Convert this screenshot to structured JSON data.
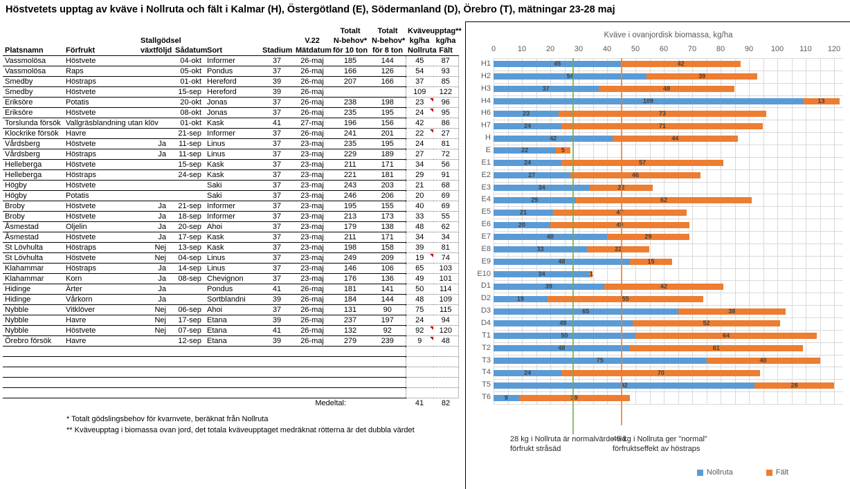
{
  "title": "Höstvetets upptag av kväve i Nollruta och fält i Kalmar (H), Östergötland (E), Södermanland (D), Örebro (T), mätningar 23-28 maj",
  "table": {
    "columns": [
      {
        "key": "platsnamn",
        "h1": "",
        "h2": "",
        "h3": "Platsnamn"
      },
      {
        "key": "forfrukt",
        "h1": "",
        "h2": "",
        "h3": "Förfrukt"
      },
      {
        "key": "stallgodsel",
        "h1": "",
        "h2": "Stallgödsel",
        "h3": "växtföljd"
      },
      {
        "key": "sadatum",
        "h1": "",
        "h2": "",
        "h3": "Sådatum"
      },
      {
        "key": "sort",
        "h1": "",
        "h2": "",
        "h3": "Sort"
      },
      {
        "key": "stadium",
        "h1": "",
        "h2": "",
        "h3": "Stadium"
      },
      {
        "key": "matdatum",
        "h1": "",
        "h2": "V.22",
        "h3": "Mätdatum"
      },
      {
        "key": "nbehov10",
        "h1": "Totalt",
        "h2": "N-behov*",
        "h3": "för 10 ton"
      },
      {
        "key": "nbehov8",
        "h1": "Totalt",
        "h2": "N-behov*",
        "h3": "för 8 ton"
      },
      {
        "key": "nollruta",
        "h1": "Kväveupptag**",
        "h2": "kg/ha",
        "h3": "Nollruta"
      },
      {
        "key": "falt",
        "h1": "",
        "h2": "kg/ha",
        "h3": "Fält"
      }
    ],
    "rows": [
      {
        "platsnamn": "Vassmolösa",
        "forfrukt": "Höstvete",
        "stallgodsel": "",
        "sadatum": "04-okt",
        "sort": "Informer",
        "stadium": "37",
        "matdatum": "26-maj",
        "nbehov10": "185",
        "nbehov8": "144",
        "nollruta": "45",
        "falt": "87"
      },
      {
        "platsnamn": "Vassmolösa",
        "forfrukt": "Raps",
        "stallgodsel": "",
        "sadatum": "05-okt",
        "sort": "Pondus",
        "stadium": "37",
        "matdatum": "26-maj",
        "nbehov10": "166",
        "nbehov8": "126",
        "nollruta": "54",
        "falt": "93"
      },
      {
        "platsnamn": "Smedby",
        "forfrukt": "Höstraps",
        "stallgodsel": "",
        "sadatum": "01-okt",
        "sort": "Hereford",
        "stadium": "39",
        "matdatum": "26-maj",
        "nbehov10": "207",
        "nbehov8": "166",
        "nollruta": "37",
        "falt": "85"
      },
      {
        "platsnamn": "Smedby",
        "forfrukt": "Höstvete",
        "stallgodsel": "",
        "sadatum": "15-sep",
        "sort": "Hereford",
        "stadium": "39",
        "matdatum": "26-maj",
        "nbehov10": "",
        "nbehov8": "",
        "nollruta": "109",
        "falt": "122"
      },
      {
        "platsnamn": "Eriksöre",
        "forfrukt": "Potatis",
        "stallgodsel": "",
        "sadatum": "20-okt",
        "sort": "Jonas",
        "stadium": "37",
        "matdatum": "26-maj",
        "nbehov10": "238",
        "nbehov8": "198",
        "nollruta": "23",
        "falt": "96",
        "flag": true
      },
      {
        "platsnamn": "Eriksöre",
        "forfrukt": "Höstvete",
        "stallgodsel": "",
        "sadatum": "08-okt",
        "sort": "Jonas",
        "stadium": "37",
        "matdatum": "26-maj",
        "nbehov10": "235",
        "nbehov8": "195",
        "nollruta": "24",
        "falt": "95",
        "flag": true
      },
      {
        "platsnamn": "Torslunda försök",
        "forfrukt": "Vallgräsblandning utan klöv",
        "stallgodsel": "",
        "sadatum": "01-okt",
        "sort": "Kask",
        "stadium": "41",
        "matdatum": "27-maj",
        "nbehov10": "196",
        "nbehov8": "156",
        "nollruta": "42",
        "falt": "86"
      },
      {
        "platsnamn": "Klockrike försök",
        "forfrukt": "Havre",
        "stallgodsel": "",
        "sadatum": "21-sep",
        "sort": "Informer",
        "stadium": "37",
        "matdatum": "26-maj",
        "nbehov10": "241",
        "nbehov8": "201",
        "nollruta": "22",
        "falt": "27",
        "flag": true
      },
      {
        "platsnamn": "Vårdsberg",
        "forfrukt": "Höstvete",
        "stallgodsel": "Ja",
        "sadatum": "11-sep",
        "sort": "Linus",
        "stadium": "37",
        "matdatum": "23-maj",
        "nbehov10": "235",
        "nbehov8": "195",
        "nollruta": "24",
        "falt": "81"
      },
      {
        "platsnamn": "Vårdsberg",
        "forfrukt": "Höstraps",
        "stallgodsel": "Ja",
        "sadatum": "11-sep",
        "sort": "Linus",
        "stadium": "37",
        "matdatum": "23-maj",
        "nbehov10": "229",
        "nbehov8": "189",
        "nollruta": "27",
        "falt": "72"
      },
      {
        "platsnamn": "Helleberga",
        "forfrukt": "Höstvete",
        "stallgodsel": "",
        "sadatum": "15-sep",
        "sort": "Kask",
        "stadium": "37",
        "matdatum": "23-maj",
        "nbehov10": "211",
        "nbehov8": "171",
        "nollruta": "34",
        "falt": "56"
      },
      {
        "platsnamn": "Helleberga",
        "forfrukt": "Höstraps",
        "stallgodsel": "",
        "sadatum": "24-sep",
        "sort": "Kask",
        "stadium": "37",
        "matdatum": "23-maj",
        "nbehov10": "221",
        "nbehov8": "181",
        "nollruta": "29",
        "falt": "91"
      },
      {
        "platsnamn": "Högby",
        "forfrukt": "Höstvete",
        "stallgodsel": "",
        "sadatum": "",
        "sort": "Saki",
        "stadium": "37",
        "matdatum": "23-maj",
        "nbehov10": "243",
        "nbehov8": "203",
        "nollruta": "21",
        "falt": "68"
      },
      {
        "platsnamn": "Högby",
        "forfrukt": "Potatis",
        "stallgodsel": "",
        "sadatum": "",
        "sort": "Saki",
        "stadium": "37",
        "matdatum": "23-maj",
        "nbehov10": "246",
        "nbehov8": "206",
        "nollruta": "20",
        "falt": "69"
      },
      {
        "platsnamn": "Broby",
        "forfrukt": "Höstvete",
        "stallgodsel": "Ja",
        "sadatum": "21-sep",
        "sort": "Informer",
        "stadium": "37",
        "matdatum": "23-maj",
        "nbehov10": "195",
        "nbehov8": "155",
        "nollruta": "40",
        "falt": "69"
      },
      {
        "platsnamn": "Broby",
        "forfrukt": "Höstvete",
        "stallgodsel": "Ja",
        "sadatum": "18-sep",
        "sort": "Informer",
        "stadium": "37",
        "matdatum": "23-maj",
        "nbehov10": "213",
        "nbehov8": "173",
        "nollruta": "33",
        "falt": "55"
      },
      {
        "platsnamn": "Åsmestad",
        "forfrukt": "Oljelin",
        "stallgodsel": "Ja",
        "sadatum": "20-sep",
        "sort": "Ahoi",
        "stadium": "37",
        "matdatum": "23-maj",
        "nbehov10": "179",
        "nbehov8": "138",
        "nollruta": "48",
        "falt": "62"
      },
      {
        "platsnamn": "Åsmestad",
        "forfrukt": "Höstvete",
        "stallgodsel": "Ja",
        "sadatum": "17-sep",
        "sort": "Kask",
        "stadium": "37",
        "matdatum": "23-maj",
        "nbehov10": "211",
        "nbehov8": "171",
        "nollruta": "34",
        "falt": "34"
      },
      {
        "platsnamn": "St Lövhulta",
        "forfrukt": "Höstraps",
        "stallgodsel": "Nej",
        "sadatum": "13-sep",
        "sort": "Kask",
        "stadium": "37",
        "matdatum": "23-maj",
        "nbehov10": "198",
        "nbehov8": "158",
        "nollruta": "39",
        "falt": "81"
      },
      {
        "platsnamn": "St Lövhulta",
        "forfrukt": "Höstvete",
        "stallgodsel": "Nej",
        "sadatum": "04-sep",
        "sort": "Linus",
        "stadium": "37",
        "matdatum": "23-maj",
        "nbehov10": "249",
        "nbehov8": "209",
        "nollruta": "19",
        "falt": "74",
        "flag": true
      },
      {
        "platsnamn": "Klahammar",
        "forfrukt": "Höstraps",
        "stallgodsel": "Ja",
        "sadatum": "14-sep",
        "sort": "Linus",
        "stadium": "37",
        "matdatum": "23-maj",
        "nbehov10": "146",
        "nbehov8": "106",
        "nollruta": "65",
        "falt": "103"
      },
      {
        "platsnamn": "Klahammar",
        "forfrukt": "Korn",
        "stallgodsel": "Ja",
        "sadatum": "08-sep",
        "sort": "Chevignon",
        "stadium": "37",
        "matdatum": "23-maj",
        "nbehov10": "176",
        "nbehov8": "136",
        "nollruta": "49",
        "falt": "101"
      },
      {
        "platsnamn": "Hidinge",
        "forfrukt": "Ärter",
        "stallgodsel": "Ja",
        "sadatum": "",
        "sort": "Pondus",
        "stadium": "41",
        "matdatum": "26-maj",
        "nbehov10": "181",
        "nbehov8": "141",
        "nollruta": "50",
        "falt": "114"
      },
      {
        "platsnamn": "Hidinge",
        "forfrukt": "Vårkorn",
        "stallgodsel": "Ja",
        "sadatum": "",
        "sort": "Sortblandni",
        "stadium": "39",
        "matdatum": "26-maj",
        "nbehov10": "184",
        "nbehov8": "144",
        "nollruta": "48",
        "falt": "109"
      },
      {
        "platsnamn": "Nybble",
        "forfrukt": "Vitklöver",
        "stallgodsel": "Nej",
        "sadatum": "06-sep",
        "sort": "Ahoi",
        "stadium": "37",
        "matdatum": "26-maj",
        "nbehov10": "131",
        "nbehov8": "90",
        "nollruta": "75",
        "falt": "115"
      },
      {
        "platsnamn": "Nybble",
        "forfrukt": "Havre",
        "stallgodsel": "Nej",
        "sadatum": "17-sep",
        "sort": "Etana",
        "stadium": "39",
        "matdatum": "26-maj",
        "nbehov10": "237",
        "nbehov8": "197",
        "nollruta": "24",
        "falt": "94"
      },
      {
        "platsnamn": "Nybble",
        "forfrukt": "Höstvete",
        "stallgodsel": "Nej",
        "sadatum": "07-sep",
        "sort": "Etana",
        "stadium": "41",
        "matdatum": "26-maj",
        "nbehov10": "132",
        "nbehov8": "92",
        "nollruta": "92",
        "falt": "120",
        "flag": true
      },
      {
        "platsnamn": "Örebro försök",
        "forfrukt": "Havre",
        "stallgodsel": "",
        "sadatum": "12-sep",
        "sort": "Etana",
        "stadium": "39",
        "matdatum": "26-maj",
        "nbehov10": "279",
        "nbehov8": "239",
        "nollruta": "9",
        "falt": "48",
        "flag": true
      }
    ],
    "empty_rows": 5,
    "medeltal": {
      "label": "Medeltal:",
      "nollruta": "41",
      "falt": "82"
    },
    "footnotes": [
      "* Totalt gödslingsbehov för  kvarnvete, beräknat från Nollruta",
      "** Kväveupptag i biomassa ovan jord, det totala kväveupptaget medräknat rötterna är det dubbla värdet"
    ]
  },
  "chart_data": {
    "type": "bar",
    "orientation": "horizontal",
    "stacked": true,
    "title": "Kväve i ovanjordisk biomassa, kg/ha",
    "categories": [
      "H1",
      "H2",
      "H3",
      "H4",
      "H6",
      "H7",
      "H",
      "E",
      "E1",
      "E2",
      "E3",
      "E4",
      "E5",
      "E6",
      "E7",
      "E8",
      "E9",
      "E10",
      "D1",
      "D2",
      "D3",
      "D4",
      "T1",
      "T2",
      "T3",
      "T4",
      "T5",
      "T6"
    ],
    "series": [
      {
        "name": "Nollruta",
        "color": "#5B9BD5",
        "values": [
          45,
          54,
          37,
          109,
          23,
          24,
          42,
          22,
          24,
          27,
          34,
          29,
          21,
          20,
          40,
          33,
          48,
          34,
          39,
          19,
          65,
          49,
          50,
          48,
          75,
          24,
          92,
          9
        ]
      },
      {
        "name": "Fält",
        "color": "#ED7D31",
        "values": [
          42,
          39,
          48,
          13,
          73,
          71,
          44,
          5,
          57,
          46,
          22,
          62,
          47,
          49,
          29,
          22,
          15,
          1,
          42,
          55,
          38,
          52,
          64,
          61,
          40,
          70,
          28,
          39
        ]
      }
    ],
    "axis": {
      "min": 0,
      "max": 120,
      "step": 10,
      "minor_step": 5
    },
    "grid": true,
    "legend_position": "bottom",
    "ref_lines": [
      {
        "value": 28,
        "color": "#70AD47",
        "label": "28 kg i Nollruta är normalvärde vid förfrukt stråsäd"
      },
      {
        "value": 45,
        "color": "#ED7D31",
        "label": "45 kg i Nollruta ger \"normal\" förfruktseffekt av höstraps"
      }
    ]
  }
}
